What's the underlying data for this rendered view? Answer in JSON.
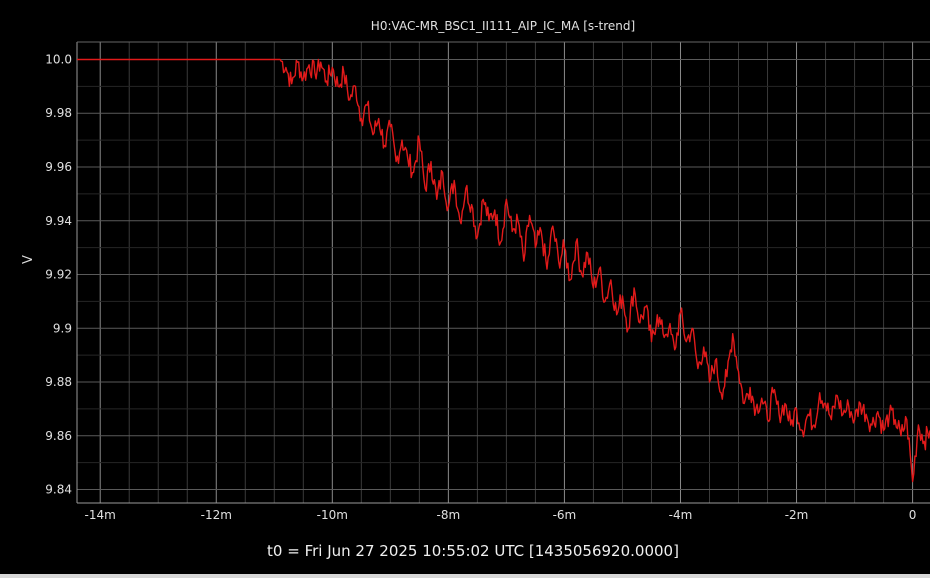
{
  "chart_data": {
    "type": "line",
    "title": "H0:VAC-MR_BSC1_II111_AIP_IC_MA [s-trend]",
    "ylabel": "V",
    "xlabel": "t0 = Fri Jun 27 2025 10:55:02 UTC [1435056920.0000]",
    "x_unit": "minutes",
    "xlim": [
      -14.4,
      0.3
    ],
    "ylim": [
      9.835,
      10.0065
    ],
    "x_ticks": [
      {
        "value": -14,
        "label": "-14m"
      },
      {
        "value": -12,
        "label": "-12m"
      },
      {
        "value": -10,
        "label": "-10m"
      },
      {
        "value": -8,
        "label": "-8m"
      },
      {
        "value": -6,
        "label": "-6m"
      },
      {
        "value": -4,
        "label": "-4m"
      },
      {
        "value": -2,
        "label": "-2m"
      },
      {
        "value": 0,
        "label": "0"
      }
    ],
    "y_ticks": [
      {
        "value": 10.0,
        "label": "10.0"
      },
      {
        "value": 9.98,
        "label": "9.98"
      },
      {
        "value": 9.96,
        "label": "9.96"
      },
      {
        "value": 9.94,
        "label": "9.94"
      },
      {
        "value": 9.92,
        "label": "9.92"
      },
      {
        "value": 9.9,
        "label": "9.9"
      },
      {
        "value": 9.88,
        "label": "9.88"
      },
      {
        "value": 9.86,
        "label": "9.86"
      },
      {
        "value": 9.84,
        "label": "9.84"
      }
    ],
    "grid": true,
    "colors": {
      "line": "#e21a1a",
      "grid": "#3a3a3a",
      "axis": "#9a9a9a",
      "background": "#000000"
    },
    "series": [
      {
        "x": [
          -14.4,
          -13.0,
          -11.5,
          -10.9,
          -10.8,
          -10.7,
          -10.6,
          -10.5,
          -10.4,
          -10.3,
          -10.2,
          -10.1,
          -10.0,
          -9.9,
          -9.8,
          -9.7,
          -9.6,
          -9.5,
          -9.4,
          -9.3,
          -9.2,
          -9.1,
          -9.0,
          -8.9,
          -8.8,
          -8.7,
          -8.6,
          -8.5,
          -8.4,
          -8.3,
          -8.2,
          -8.1,
          -8.0,
          -7.9,
          -7.8,
          -7.7,
          -7.6,
          -7.5,
          -7.4,
          -7.3,
          -7.2,
          -7.1,
          -7.0,
          -6.9,
          -6.8,
          -6.7,
          -6.6,
          -6.5,
          -6.4,
          -6.3,
          -6.2,
          -6.1,
          -6.0,
          -5.9,
          -5.8,
          -5.7,
          -5.6,
          -5.5,
          -5.4,
          -5.3,
          -5.2,
          -5.1,
          -5.0,
          -4.9,
          -4.8,
          -4.7,
          -4.6,
          -4.5,
          -4.4,
          -4.3,
          -4.2,
          -4.1,
          -4.0,
          -3.9,
          -3.8,
          -3.7,
          -3.6,
          -3.5,
          -3.4,
          -3.3,
          -3.2,
          -3.1,
          -3.0,
          -2.9,
          -2.8,
          -2.7,
          -2.6,
          -2.5,
          -2.4,
          -2.3,
          -2.2,
          -2.1,
          -2.0,
          -1.9,
          -1.8,
          -1.7,
          -1.6,
          -1.5,
          -1.4,
          -1.3,
          -1.2,
          -1.1,
          -1.0,
          -0.9,
          -0.8,
          -0.7,
          -0.6,
          -0.5,
          -0.4,
          -0.3,
          -0.2,
          -0.1,
          0.0,
          0.1,
          0.2,
          0.3
        ],
        "y": [
          10.0,
          10.0,
          10.0,
          10.0,
          9.997,
          9.991,
          9.999,
          9.993,
          9.998,
          9.995,
          9.999,
          9.992,
          9.997,
          9.99,
          9.995,
          9.985,
          9.99,
          9.978,
          9.983,
          9.972,
          9.978,
          9.968,
          9.975,
          9.962,
          9.97,
          9.963,
          9.958,
          9.97,
          9.952,
          9.962,
          9.948,
          9.958,
          9.945,
          9.955,
          9.94,
          9.952,
          9.946,
          9.934,
          9.948,
          9.94,
          9.944,
          9.932,
          9.948,
          9.936,
          9.94,
          9.925,
          9.942,
          9.93,
          9.936,
          9.922,
          9.938,
          9.925,
          9.93,
          9.918,
          9.932,
          9.92,
          9.928,
          9.915,
          9.922,
          9.91,
          9.918,
          9.905,
          9.912,
          9.9,
          9.915,
          9.902,
          9.908,
          9.895,
          9.905,
          9.898,
          9.9,
          9.892,
          9.906,
          9.895,
          9.9,
          9.885,
          9.893,
          9.88,
          9.888,
          9.876,
          9.882,
          9.898,
          9.884,
          9.872,
          9.878,
          9.87,
          9.874,
          9.866,
          9.876,
          9.868,
          9.872,
          9.864,
          9.87,
          9.862,
          9.868,
          9.864,
          9.876,
          9.872,
          9.866,
          9.875,
          9.868,
          9.871,
          9.866,
          9.872,
          9.868,
          9.864,
          9.869,
          9.862,
          9.868,
          9.866,
          9.86,
          9.866,
          9.843,
          9.864,
          9.858,
          9.862
        ]
      }
    ]
  }
}
